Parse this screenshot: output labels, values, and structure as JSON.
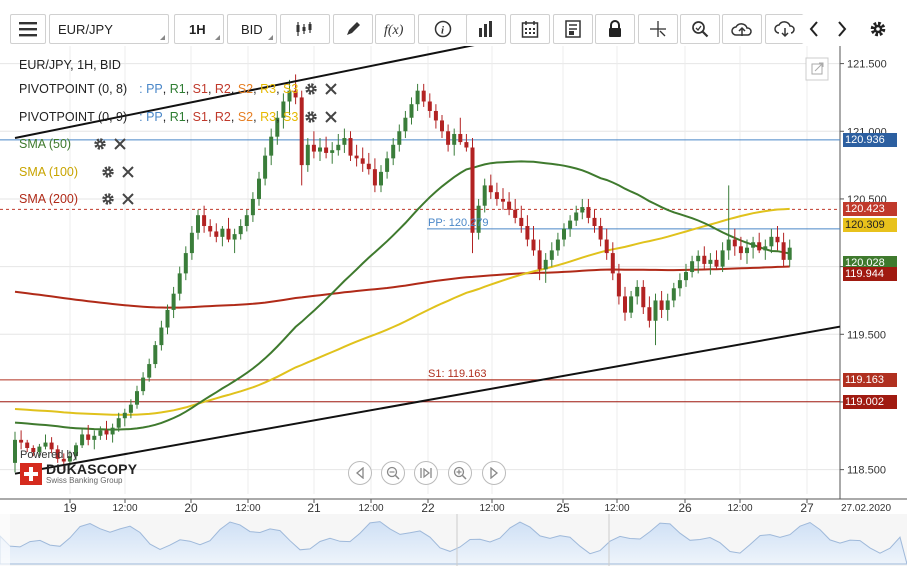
{
  "toolbar": {
    "symbol": "EUR/JPY",
    "timeframe": "1H",
    "price_side": "BID"
  },
  "legend": {
    "title": "EUR/JPY, 1H, BID",
    "pivot1_label": "PIVOTPOINT (0, 8)",
    "pivot2_label": "PIVOTPOINT (0, 9)",
    "pp": "PP",
    "r1": "R1",
    "s1": "S1",
    "r2": "R2",
    "s2": "S2",
    "r3": "R3",
    "s3": "S3",
    "sma50": "SMA (50)",
    "sma100": "SMA (100)",
    "sma200": "SMA (200)"
  },
  "branding": {
    "powered_by": "Powered by",
    "logo_text": "DUKASCOPY",
    "tagline": "Swiss Banking Group"
  },
  "colors": {
    "candle_up": "#3a7d3a",
    "candle_down": "#b22222",
    "sma50": "#3f7a2e",
    "sma100": "#e0c21c",
    "sma200": "#b02a18",
    "pp": "#4a87c8",
    "s_level": "#b03020",
    "trend": "#111111",
    "tag_blue": "#2c5fa0",
    "tag_red": "#c0392b",
    "tag_yellow": "#e8c21c",
    "tag_green": "#3f7a2e",
    "tag_darkred": "#a01a10"
  },
  "chart_data": {
    "type": "candlestick",
    "title": "EUR/JPY, 1H, BID",
    "ylim": [
      118.32,
      121.63
    ],
    "y_ticks": [
      "121.500",
      "121.000",
      "120.500",
      "120.000",
      "119.500",
      "119.000",
      "118.500"
    ],
    "x_ticks": [
      "19",
      "12:00",
      "20",
      "12:00",
      "21",
      "12:00",
      "22",
      "12:00",
      "25",
      "12:00",
      "26",
      "12:00",
      "27",
      "27.02.2020"
    ],
    "price_tags": [
      {
        "label": "120.936",
        "value": 120.936
      },
      {
        "label": "120.423",
        "value": 120.423
      },
      {
        "label": "120.309",
        "value": 120.309
      },
      {
        "label": "120.028",
        "value": 120.028
      },
      {
        "label": "119.944",
        "value": 119.944
      },
      {
        "label": "119.163",
        "value": 119.163
      },
      {
        "label": "119.002",
        "value": 119.002
      }
    ],
    "pivot_levels": [
      {
        "label": "PP: 120.279",
        "value": 120.279
      },
      {
        "label": "S1: 119.163",
        "value": 119.163
      }
    ],
    "trendlines": [
      {
        "from": [
          0,
          120.95
        ],
        "to": [
          80,
          121.68
        ]
      },
      {
        "from": [
          0,
          118.47
        ],
        "to": [
          168,
          119.82
        ]
      }
    ],
    "ohlc": [
      [
        118.55,
        118.78,
        118.48,
        118.72
      ],
      [
        118.72,
        118.79,
        118.65,
        118.7
      ],
      [
        118.7,
        118.72,
        118.63,
        118.66
      ],
      [
        118.66,
        118.68,
        118.6,
        118.63
      ],
      [
        118.63,
        118.69,
        118.6,
        118.67
      ],
      [
        118.67,
        118.76,
        118.65,
        118.7
      ],
      [
        118.7,
        118.74,
        118.62,
        118.65
      ],
      [
        118.65,
        118.68,
        118.55,
        118.58
      ],
      [
        118.58,
        118.62,
        118.5,
        118.56
      ],
      [
        118.56,
        118.64,
        118.53,
        118.6
      ],
      [
        118.6,
        118.7,
        118.57,
        118.68
      ],
      [
        118.68,
        118.8,
        118.66,
        118.76
      ],
      [
        118.76,
        118.83,
        118.68,
        118.72
      ],
      [
        118.72,
        118.79,
        118.65,
        118.75
      ],
      [
        118.75,
        118.82,
        118.72,
        118.79
      ],
      [
        118.79,
        118.86,
        118.72,
        118.76
      ],
      [
        118.76,
        118.84,
        118.7,
        118.81
      ],
      [
        118.81,
        118.92,
        118.78,
        118.88
      ],
      [
        118.88,
        118.95,
        118.82,
        118.92
      ],
      [
        118.92,
        119.02,
        118.88,
        118.98
      ],
      [
        118.98,
        119.12,
        118.95,
        119.08
      ],
      [
        119.08,
        119.22,
        119.05,
        119.18
      ],
      [
        119.18,
        119.32,
        119.15,
        119.28
      ],
      [
        119.28,
        119.45,
        119.25,
        119.42
      ],
      [
        119.42,
        119.6,
        119.38,
        119.55
      ],
      [
        119.55,
        119.72,
        119.5,
        119.68
      ],
      [
        119.68,
        119.85,
        119.62,
        119.8
      ],
      [
        119.8,
        120.0,
        119.75,
        119.95
      ],
      [
        119.95,
        120.15,
        119.9,
        120.1
      ],
      [
        120.1,
        120.3,
        120.05,
        120.25
      ],
      [
        120.25,
        120.42,
        120.2,
        120.38
      ],
      [
        120.38,
        120.45,
        120.25,
        120.3
      ],
      [
        120.3,
        120.35,
        120.22,
        120.26
      ],
      [
        120.26,
        120.32,
        120.18,
        120.22
      ],
      [
        120.22,
        120.3,
        120.15,
        120.28
      ],
      [
        120.28,
        120.36,
        120.18,
        120.2
      ],
      [
        120.2,
        120.28,
        120.1,
        120.24
      ],
      [
        120.24,
        120.35,
        120.2,
        120.3
      ],
      [
        120.3,
        120.42,
        120.26,
        120.38
      ],
      [
        120.38,
        120.55,
        120.33,
        120.5
      ],
      [
        120.5,
        120.7,
        120.45,
        120.65
      ],
      [
        120.65,
        120.88,
        120.6,
        120.82
      ],
      [
        120.82,
        121.02,
        120.75,
        120.96
      ],
      [
        120.96,
        121.15,
        120.9,
        121.1
      ],
      [
        121.1,
        121.28,
        121.02,
        121.22
      ],
      [
        121.22,
        121.38,
        121.12,
        121.3
      ],
      [
        121.3,
        121.42,
        121.2,
        121.25
      ],
      [
        121.25,
        121.3,
        120.6,
        120.75
      ],
      [
        120.75,
        120.95,
        120.7,
        120.9
      ],
      [
        120.9,
        121.0,
        120.8,
        120.85
      ],
      [
        120.85,
        120.95,
        120.78,
        120.88
      ],
      [
        120.88,
        120.96,
        120.8,
        120.84
      ],
      [
        120.84,
        120.92,
        120.76,
        120.86
      ],
      [
        120.86,
        120.98,
        120.82,
        120.9
      ],
      [
        120.9,
        121.02,
        120.84,
        120.95
      ],
      [
        120.95,
        121.0,
        120.78,
        120.82
      ],
      [
        120.82,
        120.9,
        120.74,
        120.8
      ],
      [
        120.8,
        120.88,
        120.7,
        120.76
      ],
      [
        120.76,
        120.84,
        120.68,
        120.72
      ],
      [
        120.72,
        120.8,
        120.55,
        120.6
      ],
      [
        120.6,
        120.75,
        120.55,
        120.7
      ],
      [
        120.7,
        120.85,
        120.65,
        120.8
      ],
      [
        120.8,
        120.95,
        120.75,
        120.9
      ],
      [
        120.9,
        121.05,
        120.85,
        121.0
      ],
      [
        121.0,
        121.15,
        120.95,
        121.1
      ],
      [
        121.1,
        121.25,
        121.05,
        121.2
      ],
      [
        121.2,
        121.35,
        121.15,
        121.3
      ],
      [
        121.3,
        121.35,
        121.18,
        121.22
      ],
      [
        121.22,
        121.28,
        121.1,
        121.15
      ],
      [
        121.15,
        121.2,
        121.02,
        121.08
      ],
      [
        121.08,
        121.12,
        120.95,
        121.0
      ],
      [
        121.0,
        121.05,
        120.85,
        120.9
      ],
      [
        120.9,
        121.02,
        120.82,
        120.98
      ],
      [
        120.98,
        121.1,
        120.9,
        120.92
      ],
      [
        120.92,
        120.98,
        120.85,
        120.88
      ],
      [
        120.88,
        120.95,
        120.1,
        120.25
      ],
      [
        120.25,
        120.5,
        120.2,
        120.45
      ],
      [
        120.45,
        120.65,
        120.4,
        120.6
      ],
      [
        120.6,
        120.68,
        120.5,
        120.55
      ],
      [
        120.55,
        120.62,
        120.45,
        120.5
      ],
      [
        120.5,
        120.58,
        120.42,
        120.48
      ],
      [
        120.48,
        120.55,
        120.38,
        120.42
      ],
      [
        120.42,
        120.5,
        120.32,
        120.36
      ],
      [
        120.36,
        120.45,
        120.25,
        120.3
      ],
      [
        120.3,
        120.38,
        120.15,
        120.2
      ],
      [
        120.2,
        120.3,
        120.08,
        120.12
      ],
      [
        120.12,
        120.2,
        119.9,
        119.98
      ],
      [
        119.98,
        120.1,
        119.88,
        120.05
      ],
      [
        120.05,
        120.18,
        120.0,
        120.12
      ],
      [
        120.12,
        120.25,
        120.08,
        120.2
      ],
      [
        120.2,
        120.32,
        120.15,
        120.28
      ],
      [
        120.28,
        120.38,
        120.22,
        120.34
      ],
      [
        120.34,
        120.45,
        120.3,
        120.4
      ],
      [
        120.4,
        120.5,
        120.35,
        120.44
      ],
      [
        120.44,
        120.5,
        120.32,
        120.36
      ],
      [
        120.36,
        120.42,
        120.25,
        120.3
      ],
      [
        120.3,
        120.36,
        120.15,
        120.2
      ],
      [
        120.2,
        120.28,
        120.05,
        120.1
      ],
      [
        120.1,
        120.18,
        119.9,
        119.95
      ],
      [
        119.95,
        120.02,
        119.72,
        119.78
      ],
      [
        119.78,
        119.85,
        119.6,
        119.66
      ],
      [
        119.66,
        119.82,
        119.62,
        119.78
      ],
      [
        119.78,
        119.9,
        119.72,
        119.85
      ],
      [
        119.85,
        119.9,
        119.65,
        119.7
      ],
      [
        119.7,
        119.78,
        119.55,
        119.6
      ],
      [
        119.6,
        119.8,
        119.42,
        119.75
      ],
      [
        119.75,
        119.82,
        119.62,
        119.68
      ],
      [
        119.68,
        119.8,
        119.6,
        119.75
      ],
      [
        119.75,
        119.88,
        119.7,
        119.84
      ],
      [
        119.84,
        119.95,
        119.78,
        119.9
      ],
      [
        119.9,
        120.02,
        119.85,
        119.96
      ],
      [
        119.96,
        120.08,
        119.92,
        120.04
      ],
      [
        120.04,
        120.12,
        119.95,
        120.08
      ],
      [
        120.08,
        120.15,
        119.98,
        120.02
      ],
      [
        120.02,
        120.1,
        119.94,
        120.05
      ],
      [
        120.05,
        120.12,
        119.98,
        120.0
      ],
      [
        120.0,
        120.18,
        119.96,
        120.12
      ],
      [
        120.12,
        120.6,
        120.05,
        120.2
      ],
      [
        120.2,
        120.28,
        120.08,
        120.15
      ],
      [
        120.15,
        120.22,
        120.05,
        120.1
      ],
      [
        120.1,
        120.2,
        120.02,
        120.14
      ],
      [
        120.14,
        120.22,
        120.06,
        120.18
      ],
      [
        120.18,
        120.25,
        120.1,
        120.12
      ],
      [
        120.12,
        120.2,
        120.05,
        120.15
      ],
      [
        120.15,
        120.28,
        120.1,
        120.22
      ],
      [
        120.22,
        120.3,
        120.12,
        120.18
      ],
      [
        120.18,
        120.25,
        120.0,
        120.05
      ],
      [
        120.05,
        120.2,
        120.0,
        120.14
      ]
    ]
  }
}
